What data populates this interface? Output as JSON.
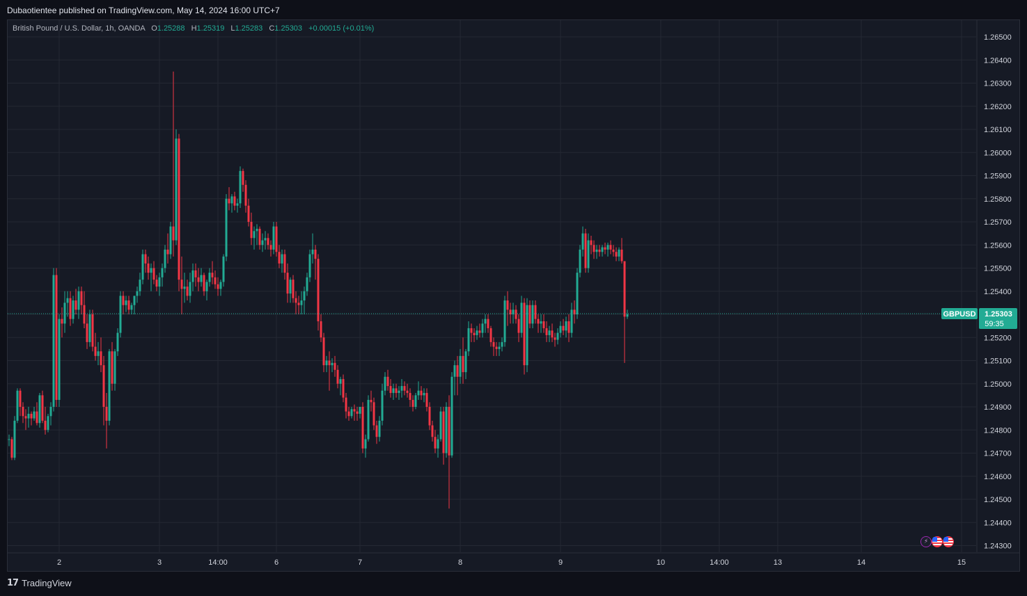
{
  "header": {
    "published": "Dubaotientee published on TradingView.com, May 14, 2024 16:00 UTC+7"
  },
  "legend": {
    "symbol_desc": "British Pound / U.S. Dollar, 1h, OANDA",
    "o_label": "O",
    "o_value": "1.25288",
    "h_label": "H",
    "h_value": "1.25319",
    "l_label": "L",
    "l_value": "1.25283",
    "c_label": "C",
    "c_value": "1.25303",
    "change": "+0.00015 (+0.01%)"
  },
  "price_tag": {
    "symbol": "GBPUSD",
    "price": "1.25303",
    "countdown": "59:35"
  },
  "footer": {
    "brand": "TradingView"
  },
  "badges": [
    "lightning-icon",
    "us-flag-icon",
    "us-flag-icon"
  ],
  "colors": {
    "up": "#22ab94",
    "down": "#f23645",
    "background": "#161a25",
    "grid": "#242833",
    "axis_text": "#d1d4dc",
    "price_line": "#22ab94"
  },
  "chart_data": {
    "type": "candlestick",
    "title": "British Pound / U.S. Dollar, 1h, OANDA",
    "xlabel": "",
    "ylabel": "",
    "ylim": [
      1.2425,
      1.2655
    ],
    "y_ticks": [
      "1.26500",
      "1.26400",
      "1.26300",
      "1.26200",
      "1.26100",
      "1.26000",
      "1.25900",
      "1.25800",
      "1.25700",
      "1.25600",
      "1.25500",
      "1.25400",
      "1.25300",
      "1.25200",
      "1.25100",
      "1.25000",
      "1.24900",
      "1.24800",
      "1.24700",
      "1.24600",
      "1.24500",
      "1.24400",
      "1.24300"
    ],
    "x_ticks": [
      {
        "label": "2",
        "index": 18
      },
      {
        "label": "3",
        "index": 54
      },
      {
        "label": "14:00",
        "index": 75
      },
      {
        "label": "6",
        "index": 96
      },
      {
        "label": "7",
        "index": 126
      },
      {
        "label": "8",
        "index": 162
      },
      {
        "label": "9",
        "index": 198
      },
      {
        "label": "10",
        "index": 234
      },
      {
        "label": "14:00",
        "index": 255
      },
      {
        "label": "13",
        "index": 276
      },
      {
        "label": "14",
        "index": 306
      },
      {
        "label": "15",
        "index": 342
      }
    ],
    "grid": true,
    "last_price": 1.25303,
    "ohlc": [
      [
        1.2476,
        1.2478,
        1.2473,
        1.2476
      ],
      [
        1.2476,
        1.2477,
        1.2467,
        1.2468
      ],
      [
        1.2468,
        1.2486,
        1.2467,
        1.2484
      ],
      [
        1.2484,
        1.2498,
        1.2483,
        1.2497
      ],
      [
        1.2497,
        1.2498,
        1.2486,
        1.249
      ],
      [
        1.249,
        1.2492,
        1.2483,
        1.2486
      ],
      [
        1.2486,
        1.2489,
        1.248,
        1.2485
      ],
      [
        1.2485,
        1.249,
        1.2481,
        1.2487
      ],
      [
        1.2487,
        1.2488,
        1.2482,
        1.2485
      ],
      [
        1.2485,
        1.249,
        1.2484,
        1.2488
      ],
      [
        1.2488,
        1.2492,
        1.2482,
        1.2483
      ],
      [
        1.2483,
        1.2496,
        1.2481,
        1.2495
      ],
      [
        1.2495,
        1.2497,
        1.2483,
        1.2484
      ],
      [
        1.2484,
        1.249,
        1.2478,
        1.248
      ],
      [
        1.248,
        1.2487,
        1.2479,
        1.2486
      ],
      [
        1.2486,
        1.2492,
        1.2482,
        1.249
      ],
      [
        1.249,
        1.255,
        1.2488,
        1.2547
      ],
      [
        1.2547,
        1.255,
        1.249,
        1.2493
      ],
      [
        1.2493,
        1.253,
        1.249,
        1.2528
      ],
      [
        1.2528,
        1.2533,
        1.252,
        1.2526
      ],
      [
        1.2526,
        1.254,
        1.2522,
        1.2535
      ],
      [
        1.2535,
        1.254,
        1.2529,
        1.2537
      ],
      [
        1.2537,
        1.254,
        1.2525,
        1.2528
      ],
      [
        1.2528,
        1.2538,
        1.2526,
        1.2536
      ],
      [
        1.2536,
        1.2541,
        1.253,
        1.2532
      ],
      [
        1.2532,
        1.2542,
        1.2528,
        1.254
      ],
      [
        1.254,
        1.2542,
        1.253,
        1.2534
      ],
      [
        1.2534,
        1.254,
        1.2524,
        1.2526
      ],
      [
        1.2526,
        1.253,
        1.2515,
        1.2518
      ],
      [
        1.2518,
        1.2532,
        1.2516,
        1.253
      ],
      [
        1.253,
        1.2532,
        1.2514,
        1.2516
      ],
      [
        1.2516,
        1.2522,
        1.251,
        1.2512
      ],
      [
        1.2512,
        1.2518,
        1.2508,
        1.2514
      ],
      [
        1.2514,
        1.252,
        1.2505,
        1.2508
      ],
      [
        1.2508,
        1.2512,
        1.2482,
        1.249
      ],
      [
        1.249,
        1.2496,
        1.2472,
        1.2484
      ],
      [
        1.2484,
        1.2515,
        1.2482,
        1.2514
      ],
      [
        1.2514,
        1.2518,
        1.2497,
        1.25
      ],
      [
        1.25,
        1.2515,
        1.2497,
        1.2514
      ],
      [
        1.2514,
        1.2524,
        1.2512,
        1.2522
      ],
      [
        1.2522,
        1.254,
        1.252,
        1.2538
      ],
      [
        1.2538,
        1.254,
        1.253,
        1.2534
      ],
      [
        1.2534,
        1.2538,
        1.2531,
        1.2536
      ],
      [
        1.2536,
        1.2538,
        1.253,
        1.2532
      ],
      [
        1.2532,
        1.2535,
        1.253,
        1.2534
      ],
      [
        1.2534,
        1.2538,
        1.253,
        1.2538
      ],
      [
        1.2538,
        1.2542,
        1.2535,
        1.254
      ],
      [
        1.254,
        1.2548,
        1.2538,
        1.2545
      ],
      [
        1.2545,
        1.2558,
        1.2543,
        1.2556
      ],
      [
        1.2556,
        1.2558,
        1.2548,
        1.2552
      ],
      [
        1.2552,
        1.2555,
        1.2545,
        1.2548
      ],
      [
        1.2548,
        1.2552,
        1.254,
        1.255
      ],
      [
        1.255,
        1.2553,
        1.2543,
        1.2545
      ],
      [
        1.2545,
        1.2547,
        1.254,
        1.2542
      ],
      [
        1.2542,
        1.2548,
        1.2538,
        1.2546
      ],
      [
        1.2546,
        1.2552,
        1.2542,
        1.255
      ],
      [
        1.255,
        1.256,
        1.2548,
        1.2558
      ],
      [
        1.2558,
        1.2565,
        1.2552,
        1.2556
      ],
      [
        1.2556,
        1.257,
        1.2554,
        1.2568
      ],
      [
        1.2568,
        1.2635,
        1.2555,
        1.2562
      ],
      [
        1.2562,
        1.261,
        1.256,
        1.2606
      ],
      [
        1.2606,
        1.2608,
        1.254,
        1.2545
      ],
      [
        1.2545,
        1.2555,
        1.253,
        1.2541
      ],
      [
        1.2541,
        1.2548,
        1.2535,
        1.2542
      ],
      [
        1.2542,
        1.2545,
        1.2536,
        1.2538
      ],
      [
        1.2538,
        1.2548,
        1.2535,
        1.2544
      ],
      [
        1.2544,
        1.2552,
        1.254,
        1.2549
      ],
      [
        1.2549,
        1.2552,
        1.2542,
        1.2546
      ],
      [
        1.2546,
        1.255,
        1.254,
        1.2544
      ],
      [
        1.2544,
        1.255,
        1.2542,
        1.2547
      ],
      [
        1.2547,
        1.2548,
        1.2538,
        1.254
      ],
      [
        1.254,
        1.2545,
        1.2536,
        1.2544
      ],
      [
        1.2544,
        1.255,
        1.2542,
        1.2548
      ],
      [
        1.2548,
        1.2553,
        1.2543,
        1.2546
      ],
      [
        1.2546,
        1.2549,
        1.2541,
        1.2543
      ],
      [
        1.2543,
        1.2546,
        1.2538,
        1.2541
      ],
      [
        1.2541,
        1.2545,
        1.2538,
        1.2544
      ],
      [
        1.2544,
        1.2556,
        1.2542,
        1.2555
      ],
      [
        1.2555,
        1.2582,
        1.2553,
        1.258
      ],
      [
        1.258,
        1.2585,
        1.2575,
        1.2578
      ],
      [
        1.2578,
        1.2582,
        1.2574,
        1.2581
      ],
      [
        1.2581,
        1.2583,
        1.2575,
        1.2577
      ],
      [
        1.2577,
        1.258,
        1.2574,
        1.2578
      ],
      [
        1.2578,
        1.2594,
        1.2576,
        1.2592
      ],
      [
        1.2592,
        1.2593,
        1.2583,
        1.2586
      ],
      [
        1.2586,
        1.2588,
        1.2574,
        1.2577
      ],
      [
        1.2577,
        1.258,
        1.2568,
        1.257
      ],
      [
        1.257,
        1.2574,
        1.256,
        1.2563
      ],
      [
        1.2563,
        1.2568,
        1.2558,
        1.2566
      ],
      [
        1.2566,
        1.2569,
        1.256,
        1.2567
      ],
      [
        1.2567,
        1.2568,
        1.2558,
        1.256
      ],
      [
        1.256,
        1.2565,
        1.2557,
        1.2562
      ],
      [
        1.2562,
        1.2566,
        1.2558,
        1.2563
      ],
      [
        1.2563,
        1.2565,
        1.2558,
        1.256
      ],
      [
        1.256,
        1.2562,
        1.2555,
        1.2558
      ],
      [
        1.2558,
        1.257,
        1.2556,
        1.2568
      ],
      [
        1.2568,
        1.257,
        1.2555,
        1.2557
      ],
      [
        1.2557,
        1.256,
        1.255,
        1.2552
      ],
      [
        1.2552,
        1.2558,
        1.2548,
        1.2556
      ],
      [
        1.2556,
        1.2558,
        1.2545,
        1.2548
      ],
      [
        1.2548,
        1.2552,
        1.2535,
        1.2539
      ],
      [
        1.2539,
        1.2546,
        1.2535,
        1.2545
      ],
      [
        1.2545,
        1.2547,
        1.2535,
        1.2537
      ],
      [
        1.2537,
        1.254,
        1.253,
        1.2535
      ],
      [
        1.2535,
        1.2538,
        1.253,
        1.2534
      ],
      [
        1.2534,
        1.254,
        1.253,
        1.2536
      ],
      [
        1.2536,
        1.2542,
        1.253,
        1.254
      ],
      [
        1.254,
        1.2548,
        1.2538,
        1.2546
      ],
      [
        1.2546,
        1.2558,
        1.2544,
        1.2556
      ],
      [
        1.2556,
        1.2565,
        1.2552,
        1.2558
      ],
      [
        1.2558,
        1.256,
        1.2545,
        1.2554
      ],
      [
        1.2554,
        1.2556,
        1.2523,
        1.2527
      ],
      [
        1.2527,
        1.253,
        1.2518,
        1.252
      ],
      [
        1.252,
        1.2522,
        1.2505,
        1.2508
      ],
      [
        1.2508,
        1.2512,
        1.2505,
        1.251
      ],
      [
        1.251,
        1.2514,
        1.2497,
        1.2508
      ],
      [
        1.2508,
        1.2511,
        1.2505,
        1.2509
      ],
      [
        1.2509,
        1.2512,
        1.2503,
        1.2506
      ],
      [
        1.2506,
        1.2508,
        1.2498,
        1.25
      ],
      [
        1.25,
        1.2503,
        1.2495,
        1.2502
      ],
      [
        1.2502,
        1.2504,
        1.2492,
        1.2494
      ],
      [
        1.2494,
        1.2496,
        1.2485,
        1.2488
      ],
      [
        1.2488,
        1.249,
        1.2484,
        1.2486
      ],
      [
        1.2486,
        1.249,
        1.2485,
        1.2489
      ],
      [
        1.2489,
        1.2491,
        1.2484,
        1.2488
      ],
      [
        1.2488,
        1.249,
        1.2484,
        1.2487
      ],
      [
        1.2487,
        1.249,
        1.2485,
        1.249
      ],
      [
        1.249,
        1.2492,
        1.247,
        1.2472
      ],
      [
        1.2472,
        1.2478,
        1.2468,
        1.2476
      ],
      [
        1.2476,
        1.2495,
        1.2475,
        1.2493
      ],
      [
        1.2493,
        1.2497,
        1.2488,
        1.2492
      ],
      [
        1.2492,
        1.2494,
        1.248,
        1.2482
      ],
      [
        1.2482,
        1.2484,
        1.2474,
        1.2477
      ],
      [
        1.2477,
        1.2486,
        1.2475,
        1.2484
      ],
      [
        1.2484,
        1.25,
        1.2482,
        1.2497
      ],
      [
        1.2497,
        1.2505,
        1.2495,
        1.2503
      ],
      [
        1.2503,
        1.2506,
        1.2497,
        1.2499
      ],
      [
        1.2499,
        1.2502,
        1.2494,
        1.2496
      ],
      [
        1.2496,
        1.25,
        1.2493,
        1.2498
      ],
      [
        1.2498,
        1.25,
        1.2494,
        1.2496
      ],
      [
        1.2496,
        1.2499,
        1.2493,
        1.2497
      ],
      [
        1.2497,
        1.2502,
        1.2494,
        1.2499
      ],
      [
        1.2499,
        1.2501,
        1.2495,
        1.2497
      ],
      [
        1.2497,
        1.25,
        1.2494,
        1.2496
      ],
      [
        1.2496,
        1.2498,
        1.249,
        1.2493
      ],
      [
        1.2493,
        1.2495,
        1.2488,
        1.249
      ],
      [
        1.249,
        1.2496,
        1.2489,
        1.2495
      ],
      [
        1.2495,
        1.2501,
        1.2493,
        1.2497
      ],
      [
        1.2497,
        1.2499,
        1.2493,
        1.2495
      ],
      [
        1.2495,
        1.2498,
        1.2492,
        1.2496
      ],
      [
        1.2496,
        1.2498,
        1.2488,
        1.249
      ],
      [
        1.249,
        1.2492,
        1.248,
        1.2482
      ],
      [
        1.2482,
        1.2484,
        1.2475,
        1.2477
      ],
      [
        1.2477,
        1.248,
        1.247,
        1.2472
      ],
      [
        1.2472,
        1.2478,
        1.2468,
        1.2476
      ],
      [
        1.2476,
        1.249,
        1.2475,
        1.2488
      ],
      [
        1.2488,
        1.249,
        1.2465,
        1.247
      ],
      [
        1.247,
        1.2492,
        1.2468,
        1.249
      ],
      [
        1.249,
        1.2495,
        1.2446,
        1.2469
      ],
      [
        1.2469,
        1.2505,
        1.2468,
        1.2503
      ],
      [
        1.2503,
        1.251,
        1.2495,
        1.2508
      ],
      [
        1.2508,
        1.2512,
        1.2495,
        1.2503
      ],
      [
        1.2503,
        1.2515,
        1.25,
        1.2512
      ],
      [
        1.2512,
        1.252,
        1.25,
        1.2505
      ],
      [
        1.2505,
        1.2515,
        1.2502,
        1.2514
      ],
      [
        1.2514,
        1.2527,
        1.2512,
        1.2524
      ],
      [
        1.2524,
        1.2526,
        1.2518,
        1.2522
      ],
      [
        1.2522,
        1.2524,
        1.2518,
        1.2521
      ],
      [
        1.2521,
        1.2525,
        1.2519,
        1.2523
      ],
      [
        1.2523,
        1.2526,
        1.252,
        1.2522
      ],
      [
        1.2522,
        1.2528,
        1.252,
        1.2526
      ],
      [
        1.2526,
        1.253,
        1.2522,
        1.2528
      ],
      [
        1.2528,
        1.253,
        1.2522,
        1.2524
      ],
      [
        1.2524,
        1.2525,
        1.2516,
        1.2518
      ],
      [
        1.2518,
        1.252,
        1.2512,
        1.2516
      ],
      [
        1.2516,
        1.2518,
        1.2512,
        1.2515
      ],
      [
        1.2515,
        1.2518,
        1.2512,
        1.2516
      ],
      [
        1.2516,
        1.252,
        1.2514,
        1.2518
      ],
      [
        1.2518,
        1.2538,
        1.2516,
        1.2536
      ],
      [
        1.2536,
        1.254,
        1.2525,
        1.2532
      ],
      [
        1.2532,
        1.2535,
        1.2526,
        1.253
      ],
      [
        1.253,
        1.2535,
        1.2526,
        1.2532
      ],
      [
        1.2532,
        1.2534,
        1.2526,
        1.2528
      ],
      [
        1.2528,
        1.253,
        1.2518,
        1.2522
      ],
      [
        1.2522,
        1.2538,
        1.252,
        1.2535
      ],
      [
        1.2535,
        1.2537,
        1.2504,
        1.2508
      ],
      [
        1.2508,
        1.2537,
        1.2505,
        1.2534
      ],
      [
        1.2534,
        1.2536,
        1.2524,
        1.2526
      ],
      [
        1.2526,
        1.2536,
        1.2524,
        1.2534
      ],
      [
        1.2534,
        1.2536,
        1.2526,
        1.2528
      ],
      [
        1.2528,
        1.253,
        1.2522,
        1.2526
      ],
      [
        1.2526,
        1.253,
        1.2522,
        1.2527
      ],
      [
        1.2527,
        1.253,
        1.2522,
        1.2524
      ],
      [
        1.2524,
        1.2527,
        1.2518,
        1.2521
      ],
      [
        1.2521,
        1.2525,
        1.2518,
        1.2523
      ],
      [
        1.2523,
        1.2526,
        1.2518,
        1.252
      ],
      [
        1.252,
        1.2522,
        1.2516,
        1.2519
      ],
      [
        1.2519,
        1.2524,
        1.2517,
        1.2522
      ],
      [
        1.2522,
        1.2527,
        1.252,
        1.2525
      ],
      [
        1.2525,
        1.2528,
        1.2521,
        1.2523
      ],
      [
        1.2523,
        1.2529,
        1.252,
        1.2527
      ],
      [
        1.2527,
        1.253,
        1.2518,
        1.2522
      ],
      [
        1.2522,
        1.2535,
        1.252,
        1.2532
      ],
      [
        1.2532,
        1.2536,
        1.2526,
        1.253
      ],
      [
        1.253,
        1.255,
        1.2528,
        1.2548
      ],
      [
        1.2548,
        1.256,
        1.2546,
        1.2558
      ],
      [
        1.2558,
        1.2568,
        1.2555,
        1.2565
      ],
      [
        1.2565,
        1.2567,
        1.2548,
        1.255
      ],
      [
        1.255,
        1.2565,
        1.2548,
        1.2562
      ],
      [
        1.2562,
        1.2564,
        1.2556,
        1.256
      ],
      [
        1.256,
        1.2562,
        1.2554,
        1.2557
      ],
      [
        1.2557,
        1.256,
        1.2554,
        1.2558
      ],
      [
        1.2558,
        1.256,
        1.2555,
        1.2557
      ],
      [
        1.2557,
        1.256,
        1.2555,
        1.2559
      ],
      [
        1.2559,
        1.2561,
        1.2556,
        1.2558
      ],
      [
        1.2558,
        1.2561,
        1.2555,
        1.256
      ],
      [
        1.256,
        1.2562,
        1.2556,
        1.2558
      ],
      [
        1.2558,
        1.256,
        1.2555,
        1.2557
      ],
      [
        1.2557,
        1.2559,
        1.2553,
        1.2555
      ],
      [
        1.2555,
        1.2559,
        1.2553,
        1.2558
      ],
      [
        1.2558,
        1.2563,
        1.2552,
        1.2553
      ],
      [
        1.2553,
        1.2553,
        1.2509,
        1.2529
      ],
      [
        1.2529,
        1.2532,
        1.2528,
        1.253
      ]
    ]
  }
}
